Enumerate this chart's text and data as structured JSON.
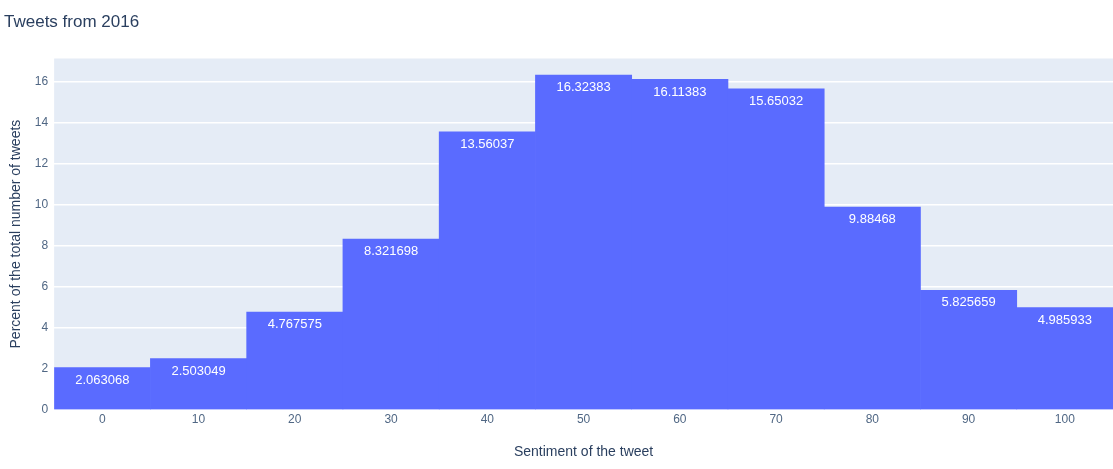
{
  "chart_data": {
    "type": "histogram",
    "title": "Tweets from 2016",
    "xlabel": "Sentiment of the tweet",
    "ylabel": "Percent of the total number of tweets",
    "bins": [
      -5,
      5,
      15,
      25,
      35,
      45,
      55,
      65,
      75,
      85,
      95,
      105
    ],
    "values": [
      2.063068,
      2.503049,
      4.767575,
      8.321698,
      13.56037,
      16.32383,
      16.11383,
      15.65032,
      9.88468,
      5.825659,
      4.985933
    ],
    "color": "#5a6bff",
    "data_labels": true,
    "grid": "y",
    "legend": false,
    "xlim": [
      -5,
      105
    ],
    "xticks": [
      0,
      10,
      20,
      30,
      40,
      50,
      60,
      70,
      80,
      90,
      100
    ],
    "ylim": [
      0,
      17.14
    ],
    "yticks": [
      0,
      2,
      4,
      6,
      8,
      10,
      12,
      14,
      16
    ]
  }
}
